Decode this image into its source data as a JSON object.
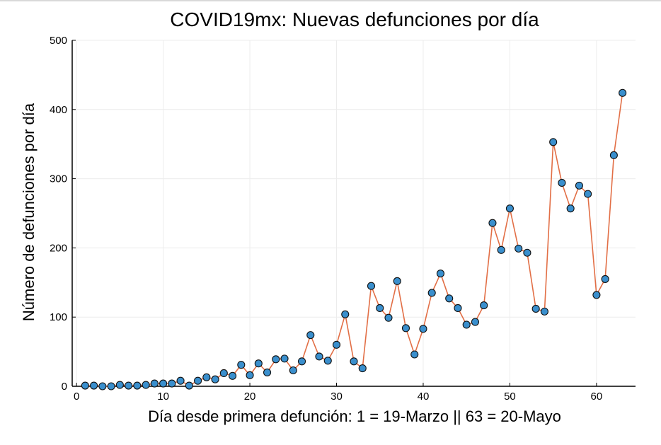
{
  "chart_data": {
    "type": "line",
    "title": "COVID19mx: Nuevas defunciones por día",
    "xlabel": "Día desde primera defunción: 1 = 19-Marzo || 63 = 20-Mayo",
    "ylabel": "Número de defunciones por día",
    "xlim": [
      -0.5,
      64.5
    ],
    "ylim": [
      0,
      500
    ],
    "xticks": [
      "0",
      "10",
      "20",
      "30",
      "40",
      "50",
      "60"
    ],
    "yticks": [
      "0",
      "100",
      "200",
      "300",
      "400",
      "500"
    ],
    "grid": true,
    "legend": "none",
    "line_color": "#e26f46",
    "marker_color": "#3a8fcd",
    "x": [
      1,
      2,
      3,
      4,
      5,
      6,
      7,
      8,
      9,
      10,
      11,
      12,
      13,
      14,
      15,
      16,
      17,
      18,
      19,
      20,
      21,
      22,
      23,
      24,
      25,
      26,
      27,
      28,
      29,
      30,
      31,
      32,
      33,
      34,
      35,
      36,
      37,
      38,
      39,
      40,
      41,
      42,
      43,
      44,
      45,
      46,
      47,
      48,
      49,
      50,
      51,
      52,
      53,
      54,
      55,
      56,
      57,
      58,
      59,
      60,
      61,
      62,
      63
    ],
    "y": [
      1,
      1,
      0,
      0,
      2,
      1,
      1,
      2,
      4,
      4,
      4,
      8,
      1,
      8,
      13,
      10,
      19,
      15,
      31,
      16,
      33,
      20,
      39,
      40,
      23,
      36,
      74,
      43,
      37,
      60,
      104,
      36,
      26,
      145,
      113,
      99,
      152,
      84,
      46,
      83,
      135,
      163,
      127,
      113,
      89,
      93,
      117,
      236,
      197,
      257,
      199,
      193,
      112,
      108,
      353,
      294,
      257,
      290,
      278,
      132,
      155,
      334,
      424
    ]
  }
}
